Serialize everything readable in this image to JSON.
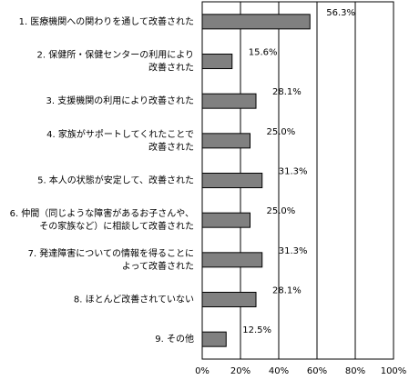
{
  "chart_data": {
    "type": "bar",
    "orientation": "horizontal",
    "categories": [
      [
        "1. 医療機関への関わりを通して改善された"
      ],
      [
        "2. 保健所・保健センターの利用により",
        "改善された"
      ],
      [
        "3. 支援機関の利用により改善された"
      ],
      [
        "4. 家族がサポートしてくれたことで",
        "改善された"
      ],
      [
        "5. 本人の状態が安定して、改善された"
      ],
      [
        "6. 仲間（同じような障害があるお子さんや、",
        "その家族など）に相談して改善された"
      ],
      [
        "7. 発達障害についての情報を得ることに",
        "よって改善された"
      ],
      [
        "8. ほとんど改善されていない"
      ],
      [
        "9. その他"
      ]
    ],
    "values": [
      56.3,
      15.6,
      28.1,
      25.0,
      31.3,
      25.0,
      31.3,
      28.1,
      12.5
    ],
    "value_labels": [
      "56.3%",
      "15.6%",
      "28.1%",
      "25.0%",
      "31.3%",
      "25.0%",
      "31.3%",
      "28.1%",
      "12.5%"
    ],
    "xlim": [
      0,
      100
    ],
    "x_ticks": [
      "0%",
      "20%",
      "40%",
      "60%",
      "80%",
      "100%"
    ],
    "title": "",
    "xlabel": "",
    "ylabel": "",
    "grid": "vertical",
    "colors": {
      "bar_fill": "#808080",
      "bar_stroke": "#000000",
      "grid": "#000000"
    }
  }
}
